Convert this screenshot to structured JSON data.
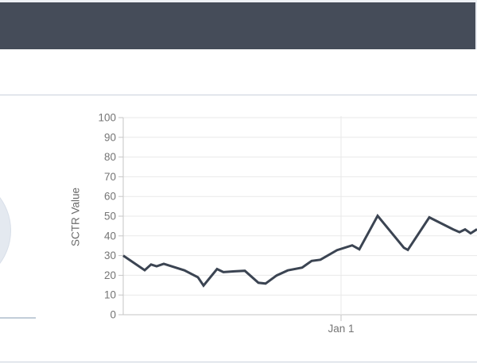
{
  "colors": {
    "header_bg": "#454c59",
    "top_strip": "#eef1f5",
    "divider": "#c9d1dc",
    "arc_fill": "#e4e9f0",
    "arc_border": "#d8dfe9",
    "gauge_baseline": "#c2cdd8",
    "line": "#3b4452",
    "grid": "#e9e9e9",
    "axis": "#c6c6c6",
    "tick_text": "#757575",
    "axis_title": "#6b6b6b"
  },
  "chart_data": {
    "type": "line",
    "title": "",
    "xlabel": "",
    "ylabel": "SCTR Value",
    "ylim": [
      0,
      100
    ],
    "y_ticks": [
      100,
      90,
      80,
      70,
      60,
      50,
      40,
      30,
      20,
      10,
      0
    ],
    "x_ticks": [
      {
        "label": "Jan 1",
        "px": 274
      }
    ],
    "grid": true,
    "legend_position": "none",
    "series": [
      {
        "name": "SCTR",
        "color": "#3b4452",
        "points": [
          [
            0,
            30
          ],
          [
            27,
            22.6
          ],
          [
            35,
            25.5
          ],
          [
            42,
            24.6
          ],
          [
            51,
            25.8
          ],
          [
            77,
            22.5
          ],
          [
            94,
            19
          ],
          [
            101,
            14.8
          ],
          [
            118,
            23.2
          ],
          [
            126,
            21.6
          ],
          [
            140,
            22
          ],
          [
            153,
            22.3
          ],
          [
            170,
            16.2
          ],
          [
            179,
            15.8
          ],
          [
            193,
            19.9
          ],
          [
            207,
            22.5
          ],
          [
            225,
            23.9
          ],
          [
            237,
            27.3
          ],
          [
            248,
            27.9
          ],
          [
            269,
            32.8
          ],
          [
            288,
            35.2
          ],
          [
            297,
            33.2
          ],
          [
            320,
            50.2
          ],
          [
            353,
            34
          ],
          [
            358,
            32.9
          ],
          [
            385,
            49.4
          ],
          [
            415,
            43.3
          ],
          [
            423,
            41.9
          ],
          [
            430,
            43.3
          ],
          [
            437,
            41.3
          ],
          [
            445,
            43.4
          ]
        ]
      }
    ]
  }
}
